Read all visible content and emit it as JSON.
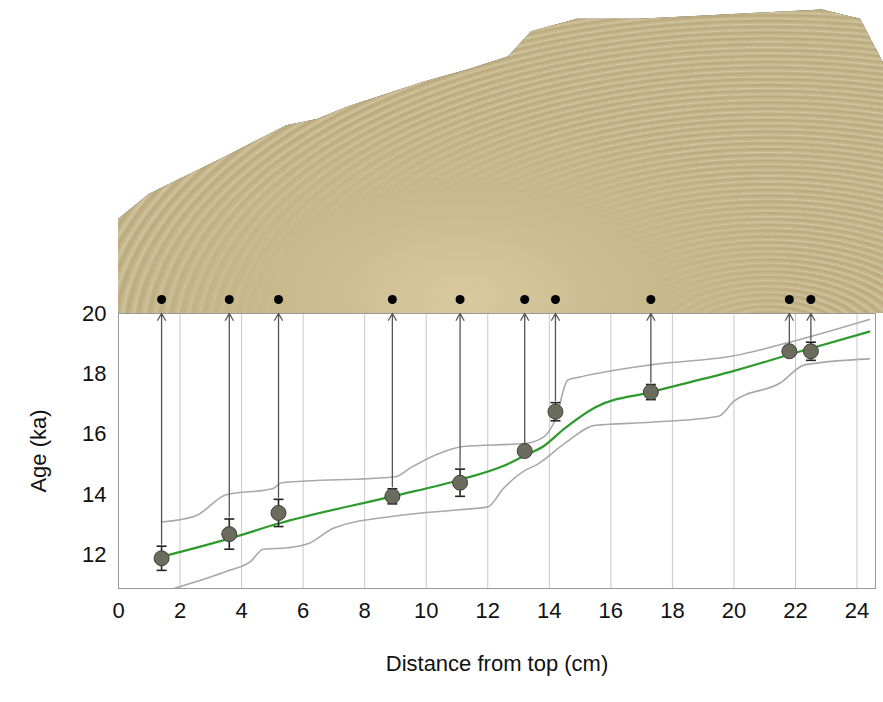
{
  "chart_data": {
    "type": "scatter",
    "xlabel": "Distance from top (cm)",
    "ylabel": "Age (ka)",
    "xlim": [
      0,
      24.6
    ],
    "xticks": [
      0,
      2,
      4,
      6,
      8,
      10,
      12,
      14,
      16,
      18,
      20,
      22,
      24
    ],
    "ylim": [
      10.9,
      20
    ],
    "yticks": [
      12,
      14,
      16,
      18,
      20
    ],
    "grid": true,
    "points": {
      "x": [
        1.4,
        3.6,
        5.2,
        8.9,
        11.1,
        13.2,
        14.2,
        17.3,
        21.8,
        22.5
      ],
      "values": [
        11.9,
        12.7,
        13.4,
        13.95,
        14.4,
        15.45,
        16.75,
        17.4,
        18.75,
        18.75
      ],
      "errors": [
        0.4,
        0.5,
        0.45,
        0.25,
        0.45,
        0.12,
        0.3,
        0.25,
        0.15,
        0.3
      ],
      "color": "#6b6b5e",
      "marker": "circle"
    },
    "model": {
      "x": [
        1.4,
        3.6,
        5.2,
        8.9,
        11.1,
        12.5,
        13.2,
        13.8,
        14.5,
        15.5,
        17.3,
        20,
        22,
        24.4
      ],
      "values": [
        11.95,
        12.55,
        13.05,
        13.95,
        14.5,
        14.95,
        15.3,
        15.6,
        16.2,
        16.9,
        17.4,
        18.1,
        18.7,
        19.4
      ],
      "color": "#2e9a2e",
      "line_style": "solid"
    },
    "envelope": {
      "color": "#a8a8a8",
      "upper": {
        "x": [
          1.4,
          2.5,
          3.5,
          5.0,
          5.3,
          9,
          9.5,
          10.5,
          11.2,
          13.2,
          13.8,
          14.2,
          14.6,
          15,
          17.3,
          20,
          22,
          24.4
        ],
        "values": [
          13.1,
          13.3,
          14.0,
          14.2,
          14.4,
          14.6,
          14.9,
          15.4,
          15.6,
          15.7,
          15.9,
          16.5,
          17.8,
          17.9,
          18.3,
          18.6,
          19.1,
          19.8
        ]
      },
      "lower": {
        "x": [
          1.8,
          3.6,
          4.3,
          4.7,
          5.5,
          6.2,
          7,
          9,
          11,
          12,
          12.5,
          13.2,
          13.6,
          14.5,
          15.5,
          17.3,
          19.5,
          20,
          21.5,
          22.3,
          24.4
        ],
        "values": [
          10.9,
          11.5,
          11.8,
          12.2,
          12.25,
          12.4,
          12.9,
          13.3,
          13.5,
          13.6,
          14.2,
          14.8,
          15.0,
          15.7,
          16.3,
          16.4,
          16.6,
          17.1,
          17.7,
          18.3,
          18.5
        ]
      }
    }
  }
}
